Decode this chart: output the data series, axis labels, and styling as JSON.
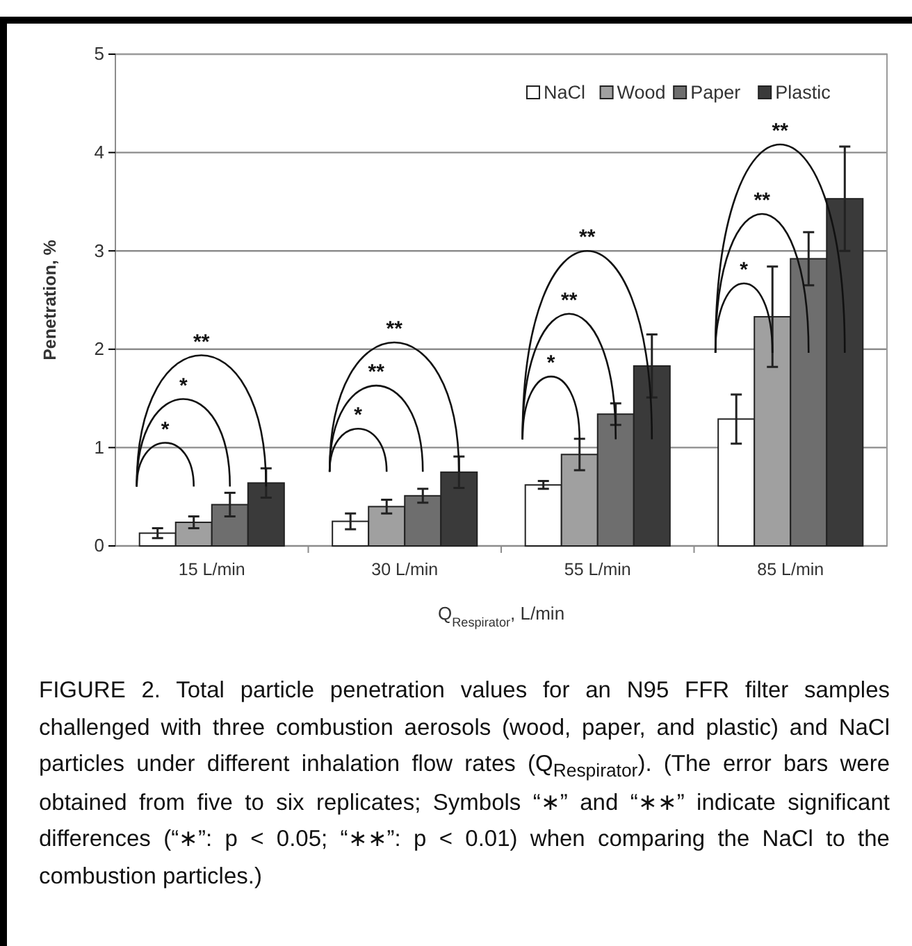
{
  "chart_data": {
    "type": "bar",
    "categories": [
      "15 L/min",
      "30 L/min",
      "55 L/min",
      "85 L/min"
    ],
    "series": [
      {
        "name": "NaCl",
        "color": "#ffffff",
        "values": [
          0.13,
          0.25,
          0.62,
          1.29
        ],
        "errors": [
          0.05,
          0.08,
          0.04,
          0.25
        ]
      },
      {
        "name": "Wood",
        "color": "#a0a0a0",
        "values": [
          0.24,
          0.4,
          0.93,
          2.33
        ],
        "errors": [
          0.06,
          0.07,
          0.16,
          0.51
        ]
      },
      {
        "name": "Paper",
        "color": "#6e6e6e",
        "values": [
          0.42,
          0.51,
          1.34,
          2.92
        ],
        "errors": [
          0.12,
          0.07,
          0.11,
          0.27
        ]
      },
      {
        "name": "Plastic",
        "color": "#3a3a3a",
        "values": [
          0.64,
          0.75,
          1.83,
          3.53
        ],
        "errors": [
          0.15,
          0.16,
          0.32,
          0.53
        ]
      }
    ],
    "ylim": [
      0,
      5
    ],
    "yticks": [
      0,
      1,
      2,
      3,
      4,
      5
    ],
    "grid": "y",
    "legend": "top right",
    "xlabel": "Q$_{Respirator}$, L/min",
    "ylabel": "Penetration, %",
    "annotations": [
      "*",
      "*",
      "**",
      "*",
      "**",
      "**",
      "*",
      "**",
      "**",
      "*",
      "**",
      "**",
      "FIGURE 2. Total particle penetration values for an N95 FFR filter samples challenged with three combustion aerosols (wood, paper, and plastic) and NaCl particles under different inhalation flow rates (Q$_{Respirator}$). (The error bars were obtained from five to six replicates; Symbols “∗” and “∗∗” indicate significant differences (“∗”: p < 0.05; “∗∗”: p < 0.01) when comparing the NaCl to the combustion particles.)"
    ]
  }
}
